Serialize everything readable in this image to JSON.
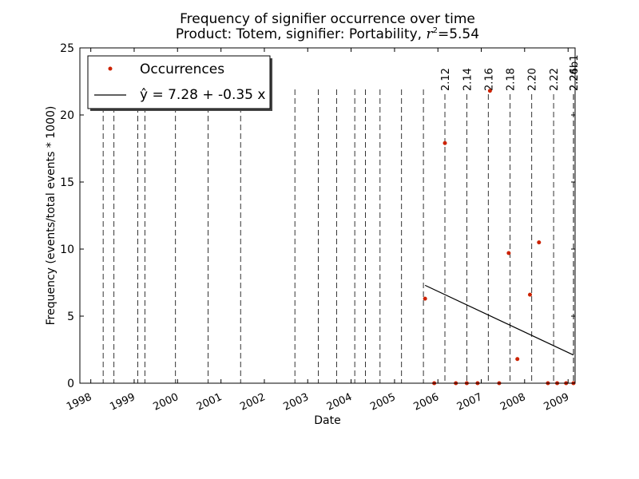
{
  "chart_data": {
    "type": "scatter",
    "title": "Frequency of signifier occurrence over time",
    "subtitle_prefix": "Product: Totem, signifier: Portability, ",
    "subtitle_r2_symbol": "r",
    "subtitle_r2_exp": "2",
    "subtitle_r2_value": "=5.54",
    "xlabel": "Date",
    "ylabel": "Frequency (events/total events * 1000)",
    "xlim": [
      "1997-10-01",
      "2009-03-01"
    ],
    "ylim": [
      0,
      25
    ],
    "yticks": [
      0,
      5,
      10,
      15,
      20,
      25
    ],
    "xticks": [
      {
        "label": "1998",
        "date": "1998-01-01"
      },
      {
        "label": "1999",
        "date": "1999-01-01"
      },
      {
        "label": "2000",
        "date": "2000-01-01"
      },
      {
        "label": "2001",
        "date": "2001-01-01"
      },
      {
        "label": "2002",
        "date": "2002-01-01"
      },
      {
        "label": "2003",
        "date": "2003-01-01"
      },
      {
        "label": "2004",
        "date": "2004-01-01"
      },
      {
        "label": "2005",
        "date": "2005-01-01"
      },
      {
        "label": "2006",
        "date": "2006-01-01"
      },
      {
        "label": "2007",
        "date": "2007-01-01"
      },
      {
        "label": "2008",
        "date": "2008-01-01"
      },
      {
        "label": "2009",
        "date": "2009-01-01"
      }
    ],
    "grid": false,
    "legend_placement": "top-left",
    "series": [
      {
        "name": "Occurrences",
        "kind": "scatter",
        "color": "#cc2200",
        "points": [
          {
            "x": "2005-09-15",
            "y": 6.3
          },
          {
            "x": "2005-12-01",
            "y": 0
          },
          {
            "x": "2006-03-01",
            "y": 17.9
          },
          {
            "x": "2006-06-01",
            "y": 0
          },
          {
            "x": "2006-09-01",
            "y": 0
          },
          {
            "x": "2006-12-01",
            "y": 0
          },
          {
            "x": "2007-03-15",
            "y": 21.8
          },
          {
            "x": "2007-06-01",
            "y": 0
          },
          {
            "x": "2007-08-20",
            "y": 9.7
          },
          {
            "x": "2007-11-01",
            "y": 1.8
          },
          {
            "x": "2008-02-15",
            "y": 6.6
          },
          {
            "x": "2008-05-01",
            "y": 10.5
          },
          {
            "x": "2008-07-15",
            "y": 0
          },
          {
            "x": "2008-10-01",
            "y": 0
          },
          {
            "x": "2008-12-15",
            "y": 0
          },
          {
            "x": "2009-02-15",
            "y": 0
          }
        ]
      },
      {
        "name": "ŷ = 7.28 + -0.35 x",
        "kind": "line",
        "color": "#000000",
        "points": [
          {
            "x": "2005-09-15",
            "y": 7.3
          },
          {
            "x": "2009-02-15",
            "y": 2.1
          }
        ]
      }
    ],
    "event_lines": [
      {
        "date": "1998-04-15",
        "label": ""
      },
      {
        "date": "1998-07-15",
        "label": ""
      },
      {
        "date": "1999-02-01",
        "label": ""
      },
      {
        "date": "1999-04-01",
        "label": ""
      },
      {
        "date": "1999-12-15",
        "label": ""
      },
      {
        "date": "2000-09-15",
        "label": ""
      },
      {
        "date": "2001-06-15",
        "label": ""
      },
      {
        "date": "2002-09-15",
        "label": ""
      },
      {
        "date": "2003-04-01",
        "label": ""
      },
      {
        "date": "2003-09-01",
        "label": ""
      },
      {
        "date": "2004-02-01",
        "label": ""
      },
      {
        "date": "2004-05-01",
        "label": ""
      },
      {
        "date": "2004-09-01",
        "label": ""
      },
      {
        "date": "2005-03-01",
        "label": ""
      },
      {
        "date": "2005-09-01",
        "label": ""
      },
      {
        "date": "2006-03-01",
        "label": "2.12"
      },
      {
        "date": "2006-09-01",
        "label": "2.14"
      },
      {
        "date": "2007-03-01",
        "label": "2.16"
      },
      {
        "date": "2007-09-01",
        "label": "2.18"
      },
      {
        "date": "2008-03-01",
        "label": "2.20"
      },
      {
        "date": "2008-09-01",
        "label": "2.22"
      },
      {
        "date": "2009-03-01",
        "label": "2.24"
      },
      {
        "date": "2009-06-01",
        "label": "2.26b1"
      }
    ]
  }
}
